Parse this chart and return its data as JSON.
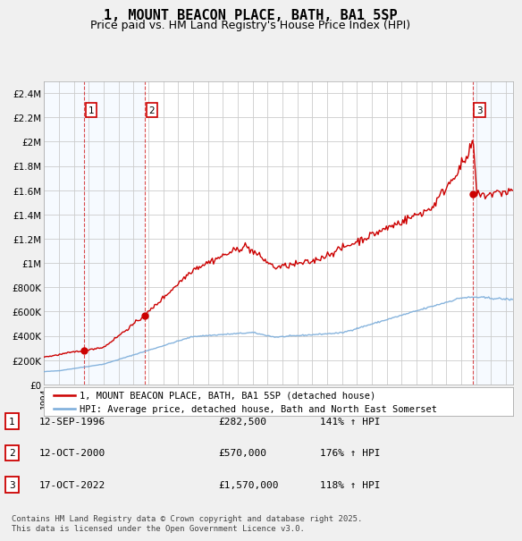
{
  "title": "1, MOUNT BEACON PLACE, BATH, BA1 5SP",
  "subtitle": "Price paid vs. HM Land Registry's House Price Index (HPI)",
  "title_fontsize": 11,
  "subtitle_fontsize": 9,
  "ylim": [
    0,
    2500000
  ],
  "xlim_start": 1994.0,
  "xlim_end": 2025.5,
  "background_color": "#f0f0f0",
  "plot_bg_color": "#ffffff",
  "grid_color": "#cccccc",
  "sale_dates": [
    1996.706,
    2000.786,
    2022.789
  ],
  "sale_prices": [
    282500,
    570000,
    1570000
  ],
  "sale_labels": [
    "1",
    "2",
    "3"
  ],
  "sale_date_strs": [
    "12-SEP-1996",
    "12-OCT-2000",
    "17-OCT-2022"
  ],
  "sale_price_strs": [
    "£282,500",
    "£570,000",
    "£1,570,000"
  ],
  "sale_pct_strs": [
    "141% ↑ HPI",
    "176% ↑ HPI",
    "118% ↑ HPI"
  ],
  "legend_line1": "1, MOUNT BEACON PLACE, BATH, BA1 5SP (detached house)",
  "legend_line2": "HPI: Average price, detached house, Bath and North East Somerset",
  "footnote": "Contains HM Land Registry data © Crown copyright and database right 2025.\nThis data is licensed under the Open Government Licence v3.0.",
  "line_color_red": "#cc0000",
  "line_color_blue": "#7aacda",
  "shade_color": "#ddeeff",
  "dot_color": "#cc0000",
  "ytick_labels": [
    "£0",
    "£200K",
    "£400K",
    "£600K",
    "£800K",
    "£1M",
    "£1.2M",
    "£1.4M",
    "£1.6M",
    "£1.8M",
    "£2M",
    "£2.2M",
    "£2.4M"
  ],
  "ytick_values": [
    0,
    200000,
    400000,
    600000,
    800000,
    1000000,
    1200000,
    1400000,
    1600000,
    1800000,
    2000000,
    2200000,
    2400000
  ]
}
